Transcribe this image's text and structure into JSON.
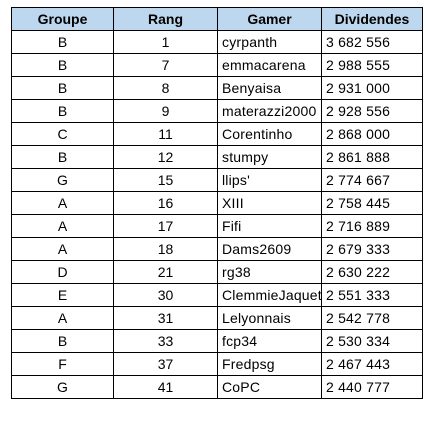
{
  "table": {
    "headers": [
      "Groupe",
      "Rang",
      "Gamer",
      "Dividendes"
    ],
    "rows": [
      [
        "B",
        "1",
        "cyrpanth",
        "3 682 556"
      ],
      [
        "B",
        "7",
        "emmacarena",
        "2 988 555"
      ],
      [
        "B",
        "8",
        "Benyaisa",
        "2 931 000"
      ],
      [
        "B",
        "9",
        "materazzi2000",
        "2 928 556"
      ],
      [
        "C",
        "11",
        "Corentinho",
        "2 868 000"
      ],
      [
        "B",
        "12",
        "stumpy",
        "2 861 888"
      ],
      [
        "G",
        "15",
        "llips'",
        "2 774 667"
      ],
      [
        "A",
        "16",
        "XIII",
        "2 758 445"
      ],
      [
        "A",
        "17",
        "Fifi",
        "2 716 889"
      ],
      [
        "A",
        "18",
        "Dams2609",
        "2 679 333"
      ],
      [
        "D",
        "21",
        "rg38",
        "2 630 222"
      ],
      [
        "E",
        "30",
        "ClemmieJaquet",
        "2 551 333"
      ],
      [
        "A",
        "31",
        "Lelyonnais",
        "2 542 778"
      ],
      [
        "B",
        "33",
        "fcp34",
        "2 530 334"
      ],
      [
        "F",
        "37",
        "Fredpsg",
        "2 467 443"
      ],
      [
        "G",
        "41",
        "CoPC",
        "2 440 777"
      ]
    ]
  },
  "colors": {
    "header_fill": "#bdd7ee",
    "grid_line": "#000000"
  }
}
